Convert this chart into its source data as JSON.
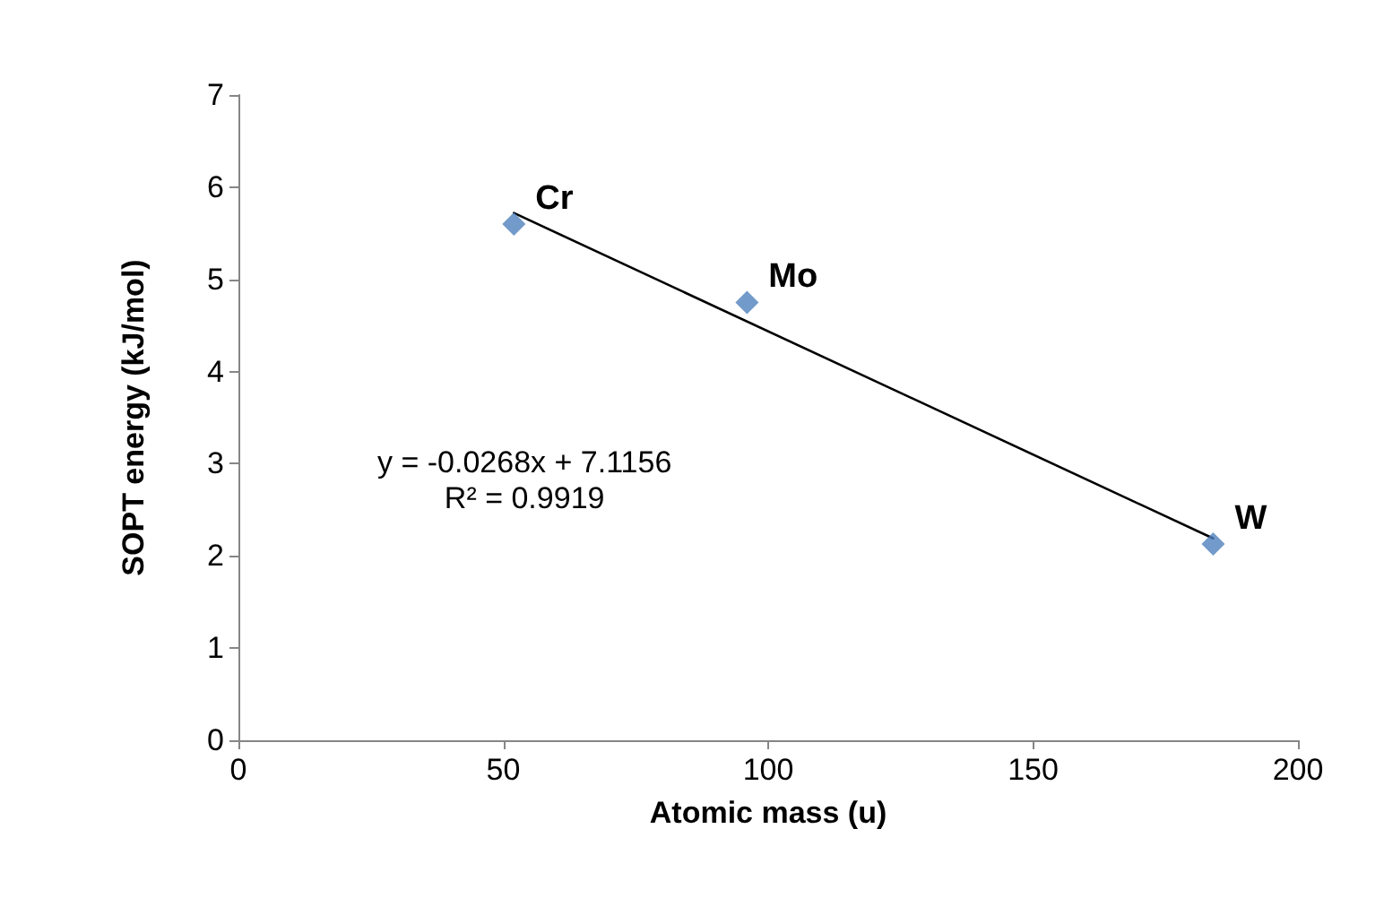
{
  "chart_data": {
    "type": "scatter",
    "xlabel": "Atomic mass (u)",
    "ylabel": "SOPT energy (kJ/mol)",
    "x": [
      52,
      96,
      184
    ],
    "series": [
      {
        "color": "#4f81bd",
        "marker": "diamond",
        "values": [
          5.6,
          4.75,
          2.13
        ]
      },
      {
        "type": "line",
        "color": "#000000",
        "marker": "none",
        "line_style": "solid",
        "x": [
          52,
          184
        ],
        "values": [
          5.72,
          2.19
        ]
      }
    ],
    "xlim": [
      0,
      200
    ],
    "xticks": [
      0,
      50,
      100,
      150,
      200
    ],
    "ylim": [
      0,
      7
    ],
    "yticks": [
      0,
      1,
      2,
      3,
      4,
      5,
      6,
      7
    ],
    "grid": false,
    "annotations": [
      {
        "text": "Cr",
        "x": 52,
        "y": 5.6
      },
      {
        "text": "Mo",
        "x": 96,
        "y": 4.75
      },
      {
        "text": "W",
        "x": 184,
        "y": 2.13
      },
      "y = -0.0268x + 7.1156",
      "R² = 0.9919"
    ]
  }
}
